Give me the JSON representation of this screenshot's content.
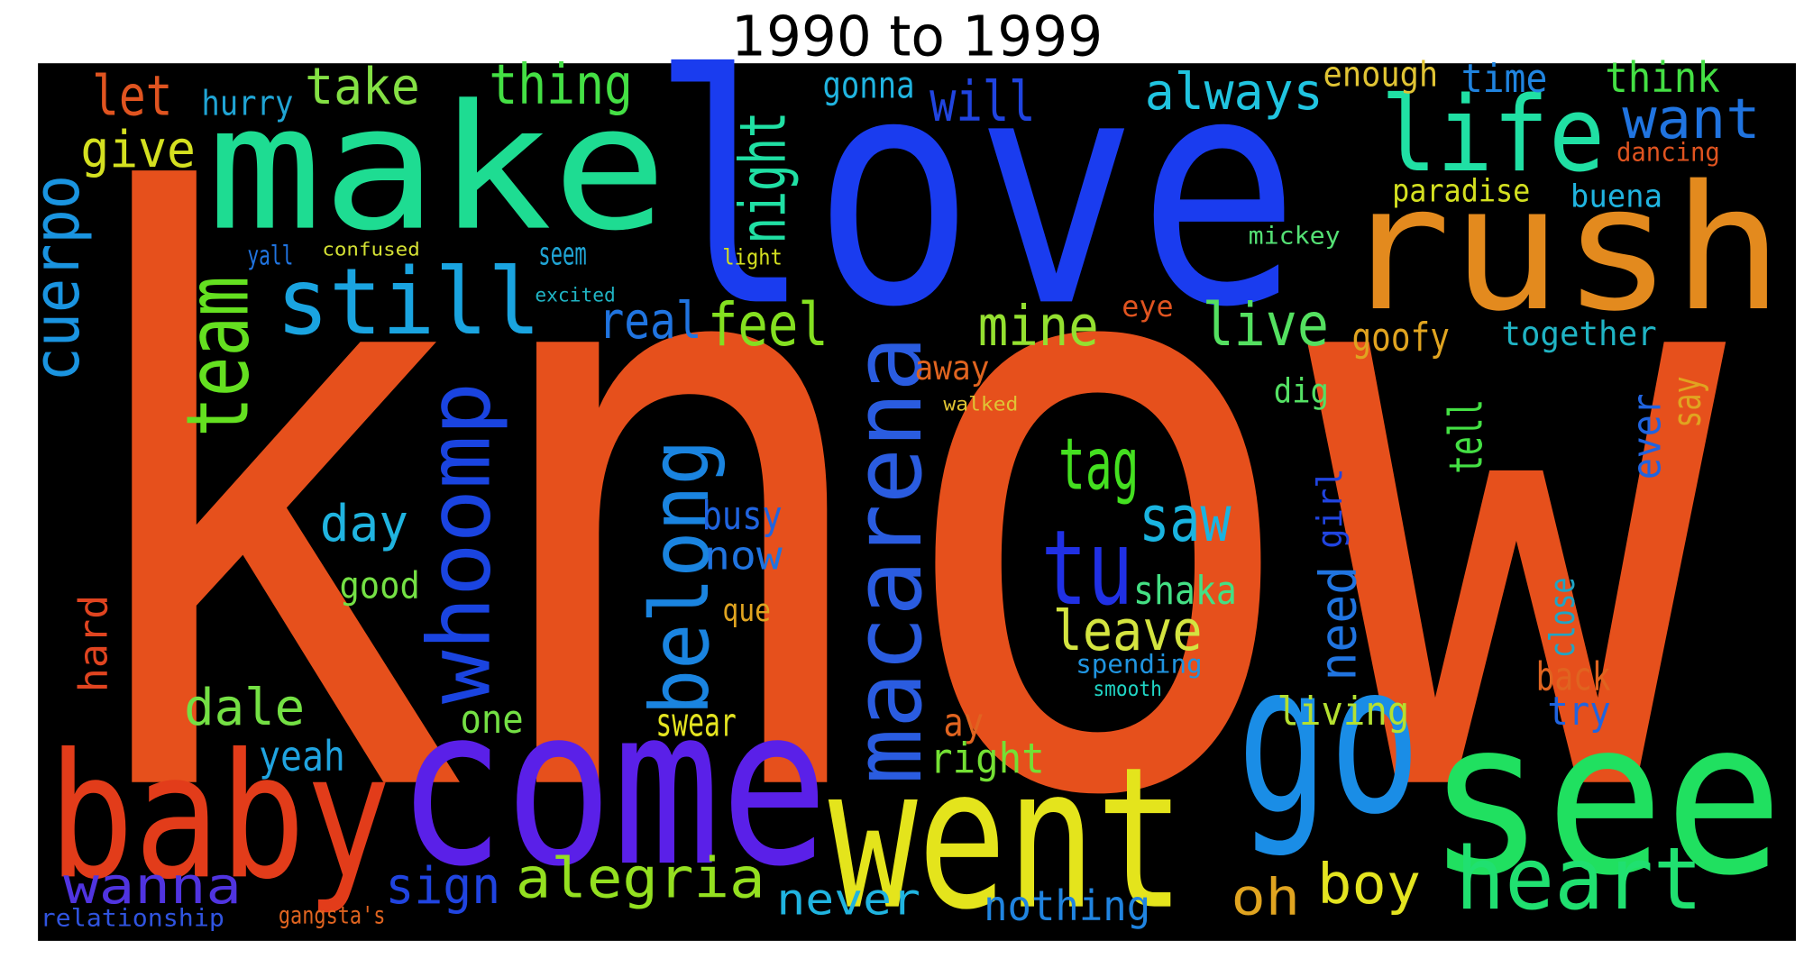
{
  "title": "1990 to 1999",
  "words": [
    {
      "text": "know",
      "color": "#e6501c"
    },
    {
      "text": "love",
      "color": "#1a3cef"
    },
    {
      "text": "make",
      "color": "#1edc92"
    },
    {
      "text": "rush",
      "color": "#e38a1e"
    },
    {
      "text": "go",
      "color": "#1a8de6"
    },
    {
      "text": "see",
      "color": "#20e060"
    },
    {
      "text": "come",
      "color": "#5a20e8"
    },
    {
      "text": "baby",
      "color": "#e23c1a"
    },
    {
      "text": "went",
      "color": "#e4e41c"
    },
    {
      "text": "heart",
      "color": "#20e070"
    },
    {
      "text": "life",
      "color": "#20e0a4"
    },
    {
      "text": "still",
      "color": "#1aa4e0"
    },
    {
      "text": "team",
      "color": "#64e020"
    },
    {
      "text": "whoomp",
      "color": "#1a44e0"
    },
    {
      "text": "macarena",
      "color": "#2a5ce0"
    },
    {
      "text": "belong",
      "color": "#1a84e0"
    },
    {
      "text": "cuerpo",
      "color": "#1a94e0"
    },
    {
      "text": "night",
      "color": "#20e0a4"
    },
    {
      "text": "tu",
      "color": "#2030e4"
    },
    {
      "text": "tag",
      "color": "#44e020"
    },
    {
      "text": "leave",
      "color": "#d4e440"
    },
    {
      "text": "shaka",
      "color": "#44e084"
    },
    {
      "text": "spending",
      "color": "#2094e0"
    },
    {
      "text": "smooth",
      "color": "#20d4c4"
    },
    {
      "text": "saw",
      "color": "#1ab4e0"
    },
    {
      "text": "live",
      "color": "#54e060"
    },
    {
      "text": "mine",
      "color": "#94e030"
    },
    {
      "text": "feel",
      "color": "#84e020"
    },
    {
      "text": "real",
      "color": "#2074e0"
    },
    {
      "text": "take",
      "color": "#84e044"
    },
    {
      "text": "let",
      "color": "#e05420"
    },
    {
      "text": "give",
      "color": "#d4e020"
    },
    {
      "text": "hurry",
      "color": "#20a4d4"
    },
    {
      "text": "thing",
      "color": "#44e044"
    },
    {
      "text": "will",
      "color": "#2044e0"
    },
    {
      "text": "gonna",
      "color": "#20b4e0"
    },
    {
      "text": "always",
      "color": "#20c4e0"
    },
    {
      "text": "enough",
      "color": "#e0c434"
    },
    {
      "text": "time",
      "color": "#2084e0"
    },
    {
      "text": "think",
      "color": "#44e044"
    },
    {
      "text": "want",
      "color": "#2074e0"
    },
    {
      "text": "paradise",
      "color": "#d4e020"
    },
    {
      "text": "buena",
      "color": "#20b4e0"
    },
    {
      "text": "dancing",
      "color": "#e05420"
    },
    {
      "text": "goofy",
      "color": "#e0a420"
    },
    {
      "text": "together",
      "color": "#20b4c4"
    },
    {
      "text": "tell",
      "color": "#44e044"
    },
    {
      "text": "say",
      "color": "#e0a420"
    },
    {
      "text": "ever",
      "color": "#2064e0"
    },
    {
      "text": "need",
      "color": "#2074e0"
    },
    {
      "text": "girl",
      "color": "#2044e0"
    },
    {
      "text": "boy",
      "color": "#e4e420"
    },
    {
      "text": "oh",
      "color": "#e0a420"
    },
    {
      "text": "back",
      "color": "#e06420"
    },
    {
      "text": "try",
      "color": "#2064e0"
    },
    {
      "text": "close",
      "color": "#20a4c4"
    },
    {
      "text": "living",
      "color": "#b4e030"
    },
    {
      "text": "day",
      "color": "#20b4e0"
    },
    {
      "text": "dale",
      "color": "#74e044"
    },
    {
      "text": "yeah",
      "color": "#20a4e0"
    },
    {
      "text": "wanna",
      "color": "#5034e0"
    },
    {
      "text": "hard",
      "color": "#e04420"
    },
    {
      "text": "sign",
      "color": "#2044e0"
    },
    {
      "text": "alegria",
      "color": "#94e020"
    },
    {
      "text": "never",
      "color": "#20b4e0"
    },
    {
      "text": "nothing",
      "color": "#2084e0"
    },
    {
      "text": "right",
      "color": "#74e034"
    },
    {
      "text": "ay",
      "color": "#e06420"
    },
    {
      "text": "swear",
      "color": "#e4e420"
    },
    {
      "text": "one",
      "color": "#74e044"
    },
    {
      "text": "now",
      "color": "#2074e0"
    },
    {
      "text": "busy",
      "color": "#2064e0"
    },
    {
      "text": "que",
      "color": "#e0a420"
    },
    {
      "text": "away",
      "color": "#e06420"
    },
    {
      "text": "dig",
      "color": "#54e064"
    },
    {
      "text": "good",
      "color": "#74e044"
    },
    {
      "text": "seem",
      "color": "#20a4d4"
    },
    {
      "text": "yall",
      "color": "#2074e0"
    },
    {
      "text": "relationship",
      "color": "#3054e0"
    },
    {
      "text": "gangsta's",
      "color": "#e06420"
    },
    {
      "text": "eye",
      "color": "#e05420"
    },
    {
      "text": "mickey",
      "color": "#54e074"
    },
    {
      "text": "light",
      "color": "#d4e020"
    },
    {
      "text": "excited",
      "color": "#20b4c4"
    },
    {
      "text": "confused",
      "color": "#d4e034"
    },
    {
      "text": "walked",
      "color": "#e0c434"
    }
  ]
}
